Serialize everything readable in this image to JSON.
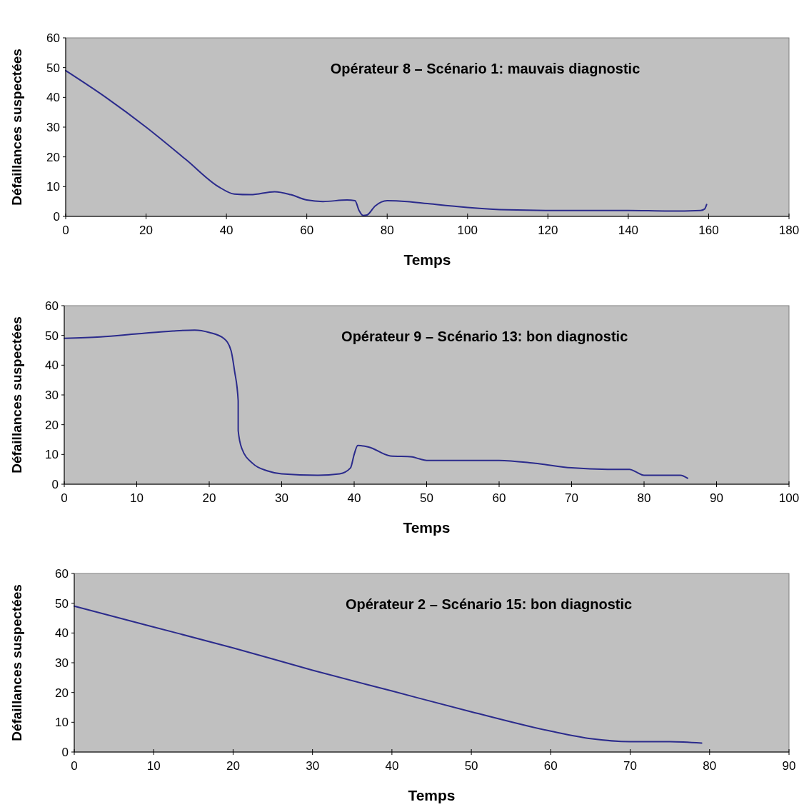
{
  "chart_data": [
    {
      "type": "line",
      "title": "Opérateur 8 – Scénario 1: mauvais diagnostic",
      "xlabel": "Temps",
      "ylabel": "Défaillances suspectées",
      "xlim": [
        0,
        180
      ],
      "xticks": [
        0,
        20,
        40,
        60,
        80,
        100,
        120,
        140,
        160,
        180
      ],
      "ylim": [
        0,
        60
      ],
      "yticks": [
        0,
        10,
        20,
        30,
        40,
        50,
        60
      ],
      "grid": false,
      "series": [
        {
          "color": "#2b2b8c",
          "x": [
            0,
            10,
            20,
            30,
            38,
            42,
            46,
            52,
            56,
            60,
            64,
            70,
            72,
            73,
            74,
            75,
            77,
            80,
            85,
            90,
            100,
            110,
            120,
            140,
            150,
            158,
            159,
            159.5
          ],
          "values": [
            49,
            40,
            30,
            19,
            10,
            7.5,
            7.3,
            8.3,
            7.3,
            5.5,
            5,
            5.5,
            5.3,
            2,
            0.3,
            0.5,
            3.5,
            5.3,
            5,
            4.3,
            3,
            2.2,
            2,
            2,
            1.8,
            2,
            2.5,
            4
          ]
        }
      ]
    },
    {
      "type": "line",
      "title": "Opérateur 9 – Scénario 13: bon diagnostic",
      "xlabel": "Temps",
      "ylabel": "Défaillances suspectées",
      "xlim": [
        0,
        100
      ],
      "xticks": [
        0,
        10,
        20,
        30,
        40,
        50,
        60,
        70,
        80,
        90,
        100
      ],
      "ylim": [
        0,
        60
      ],
      "yticks": [
        0,
        10,
        20,
        30,
        40,
        50,
        60
      ],
      "grid": false,
      "series": [
        {
          "color": "#2b2b8c",
          "x": [
            0,
            5,
            10,
            15,
            18,
            20,
            22,
            23,
            23.5,
            24,
            24,
            24.5,
            26,
            28,
            30,
            35,
            38,
            39.5,
            40,
            40.5,
            42,
            45,
            48,
            49,
            50,
            55,
            60,
            65,
            70,
            75,
            78,
            79,
            80,
            83,
            85,
            86
          ],
          "values": [
            49,
            49.5,
            50.5,
            51.5,
            51.8,
            51,
            49,
            45,
            38,
            28,
            18,
            12,
            7,
            4.5,
            3.5,
            3,
            3.5,
            5.5,
            10,
            13,
            12.5,
            9.5,
            9.2,
            8.5,
            8,
            8,
            8,
            7,
            5.5,
            5,
            5,
            4,
            3,
            3,
            3,
            2
          ]
        }
      ]
    },
    {
      "type": "line",
      "title": "Opérateur 2 – Scénario 15: bon diagnostic",
      "xlabel": "Temps",
      "ylabel": "Défaillances suspectées",
      "xlim": [
        0,
        90
      ],
      "xticks": [
        0,
        10,
        20,
        30,
        40,
        50,
        60,
        70,
        80,
        90
      ],
      "ylim": [
        0,
        60
      ],
      "yticks": [
        0,
        10,
        20,
        30,
        40,
        50,
        60
      ],
      "grid": false,
      "series": [
        {
          "color": "#2b2b8c",
          "x": [
            0,
            10,
            20,
            30,
            40,
            50,
            60,
            65,
            70,
            75,
            79
          ],
          "values": [
            49,
            42,
            35,
            27.5,
            20.5,
            13.5,
            7,
            4.5,
            3.5,
            3.5,
            3
          ]
        }
      ]
    }
  ]
}
